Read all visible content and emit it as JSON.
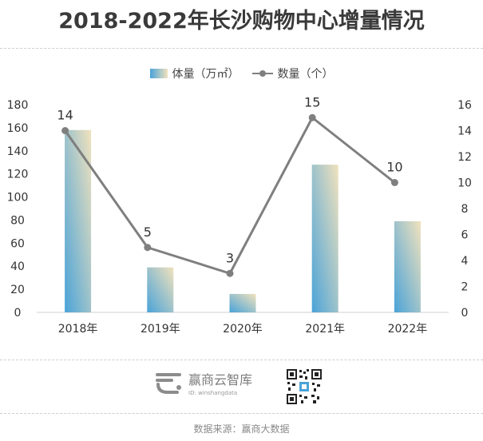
{
  "title": "2018-2022年长沙购物中心增量情况",
  "legend": {
    "bar_label": "体量（万㎡）",
    "line_label": "数量（个）"
  },
  "chart_data": {
    "type": "bar",
    "title": "2018-2022年长沙购物中心增量情况",
    "categories": [
      "2018年",
      "2019年",
      "2020年",
      "2021年",
      "2022年"
    ],
    "series": [
      {
        "name": "体量（万㎡）",
        "type": "bar",
        "axis": "left",
        "values": [
          158,
          39,
          16,
          128,
          79
        ]
      },
      {
        "name": "数量（个）",
        "type": "line",
        "axis": "right",
        "values": [
          14,
          5,
          3,
          15,
          10
        ]
      }
    ],
    "ylim_left": [
      0,
      180
    ],
    "ylim_right": [
      0,
      16
    ],
    "yticks_left": [
      "0",
      "20",
      "40",
      "60",
      "80",
      "100",
      "120",
      "140",
      "160",
      "180"
    ],
    "yticks_right": [
      "0",
      "2",
      "4",
      "6",
      "8",
      "10",
      "12",
      "14",
      "16"
    ],
    "line_data_labels": [
      "14",
      "5",
      "3",
      "15",
      "10"
    ],
    "grid": false,
    "legend_position": "top-center"
  },
  "colors": {
    "bar_top": "#f1e2bd",
    "bar_bottom": "#4aa3d8",
    "line": "#7f7f7f",
    "text": "#333333"
  },
  "footer": {
    "brand_name": "赢商云智库",
    "brand_id": "ID: winshangdata",
    "source": "数据来源：赢商大数据"
  }
}
